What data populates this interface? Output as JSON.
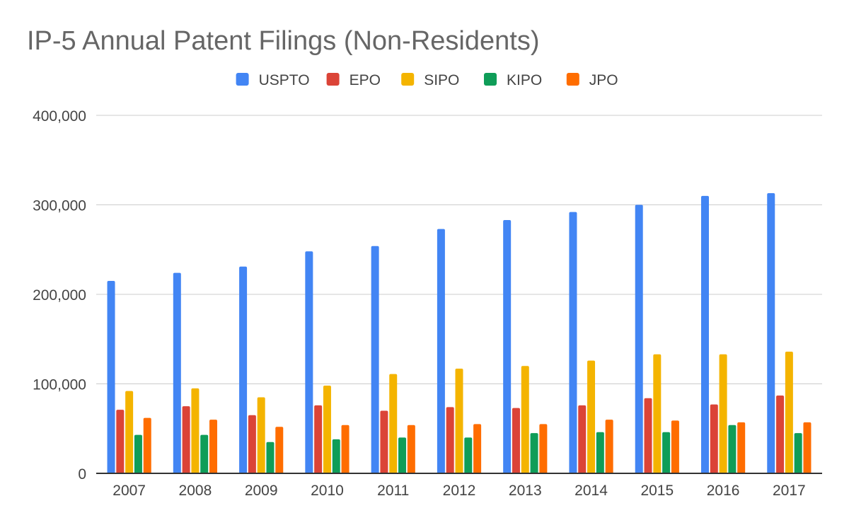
{
  "chart_data": {
    "type": "bar",
    "title": "IP-5 Annual Patent Filings (Non-Residents)",
    "xlabel": "",
    "ylabel": "",
    "ylim": [
      0,
      400000
    ],
    "yticks": [
      0,
      100000,
      200000,
      300000,
      400000
    ],
    "ytick_labels": [
      "0",
      "100,000",
      "200,000",
      "300,000",
      "400,000"
    ],
    "grid": true,
    "legend_position": "top-center",
    "categories": [
      "2007",
      "2008",
      "2009",
      "2010",
      "2011",
      "2012",
      "2013",
      "2014",
      "2015",
      "2016",
      "2017"
    ],
    "series": [
      {
        "name": "USPTO",
        "color": "#4285f4",
        "values": [
          215000,
          224000,
          231000,
          248000,
          254000,
          273000,
          283000,
          292000,
          300000,
          310000,
          313000
        ]
      },
      {
        "name": "EPO",
        "color": "#db4437",
        "values": [
          71000,
          75000,
          65000,
          76000,
          70000,
          74000,
          73000,
          76000,
          84000,
          77000,
          87000
        ]
      },
      {
        "name": "SIPO",
        "color": "#f4b400",
        "values": [
          92000,
          95000,
          85000,
          98000,
          111000,
          117000,
          120000,
          126000,
          133000,
          133000,
          136000
        ]
      },
      {
        "name": "KIPO",
        "color": "#0f9d58",
        "values": [
          43000,
          43000,
          35000,
          38000,
          40000,
          40000,
          45000,
          46000,
          46000,
          54000,
          45000
        ]
      },
      {
        "name": "JPO",
        "color": "#ff6d00",
        "values": [
          62000,
          60000,
          52000,
          54000,
          54000,
          55000,
          55000,
          60000,
          59000,
          57000,
          57000
        ]
      }
    ]
  }
}
